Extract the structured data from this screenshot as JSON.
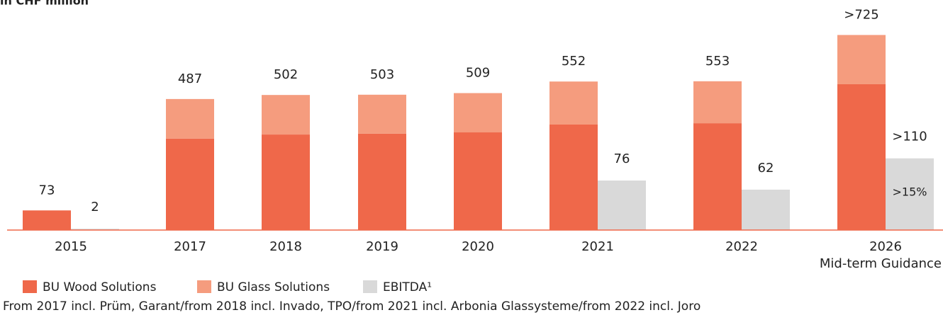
{
  "chart_data": {
    "type": "bar",
    "title": "in CHF million",
    "categories": [
      "2015",
      "2017",
      "2018",
      "2019",
      "2020",
      "2021",
      "2022",
      "2026"
    ],
    "category_note": "Mid-term Guidance",
    "series": [
      {
        "name": "BU Wood Solutions",
        "color": "#ef684a",
        "values": [
          73,
          340,
          355,
          358,
          363,
          392,
          397,
          542
        ]
      },
      {
        "name": "BU Glass Solutions",
        "color": "#f59c7e",
        "values": [
          0,
          147,
          147,
          145,
          146,
          160,
          156,
          183
        ]
      },
      {
        "name": "EBITDA¹",
        "color": "#d9d9d9",
        "axis": "y2",
        "values": [
          2,
          null,
          null,
          null,
          null,
          76,
          62,
          110
        ],
        "value_labels": [
          null,
          null,
          null,
          null,
          null,
          null,
          null,
          ">110"
        ]
      }
    ],
    "totals": {
      "values": [
        73,
        487,
        502,
        503,
        509,
        552,
        553,
        725
      ],
      "value_labels": [
        null,
        null,
        null,
        null,
        null,
        null,
        null,
        ">725"
      ]
    },
    "annotation": ">15%",
    "ylim": [
      0,
      855
    ],
    "y2lim": [
      0,
      353
    ],
    "footnote": "From 2017 incl. Prüm, Garant/from 2018 incl. Invado, TPO/from 2021 incl. Arbonia Glassysteme/from 2022 incl. Joro"
  }
}
